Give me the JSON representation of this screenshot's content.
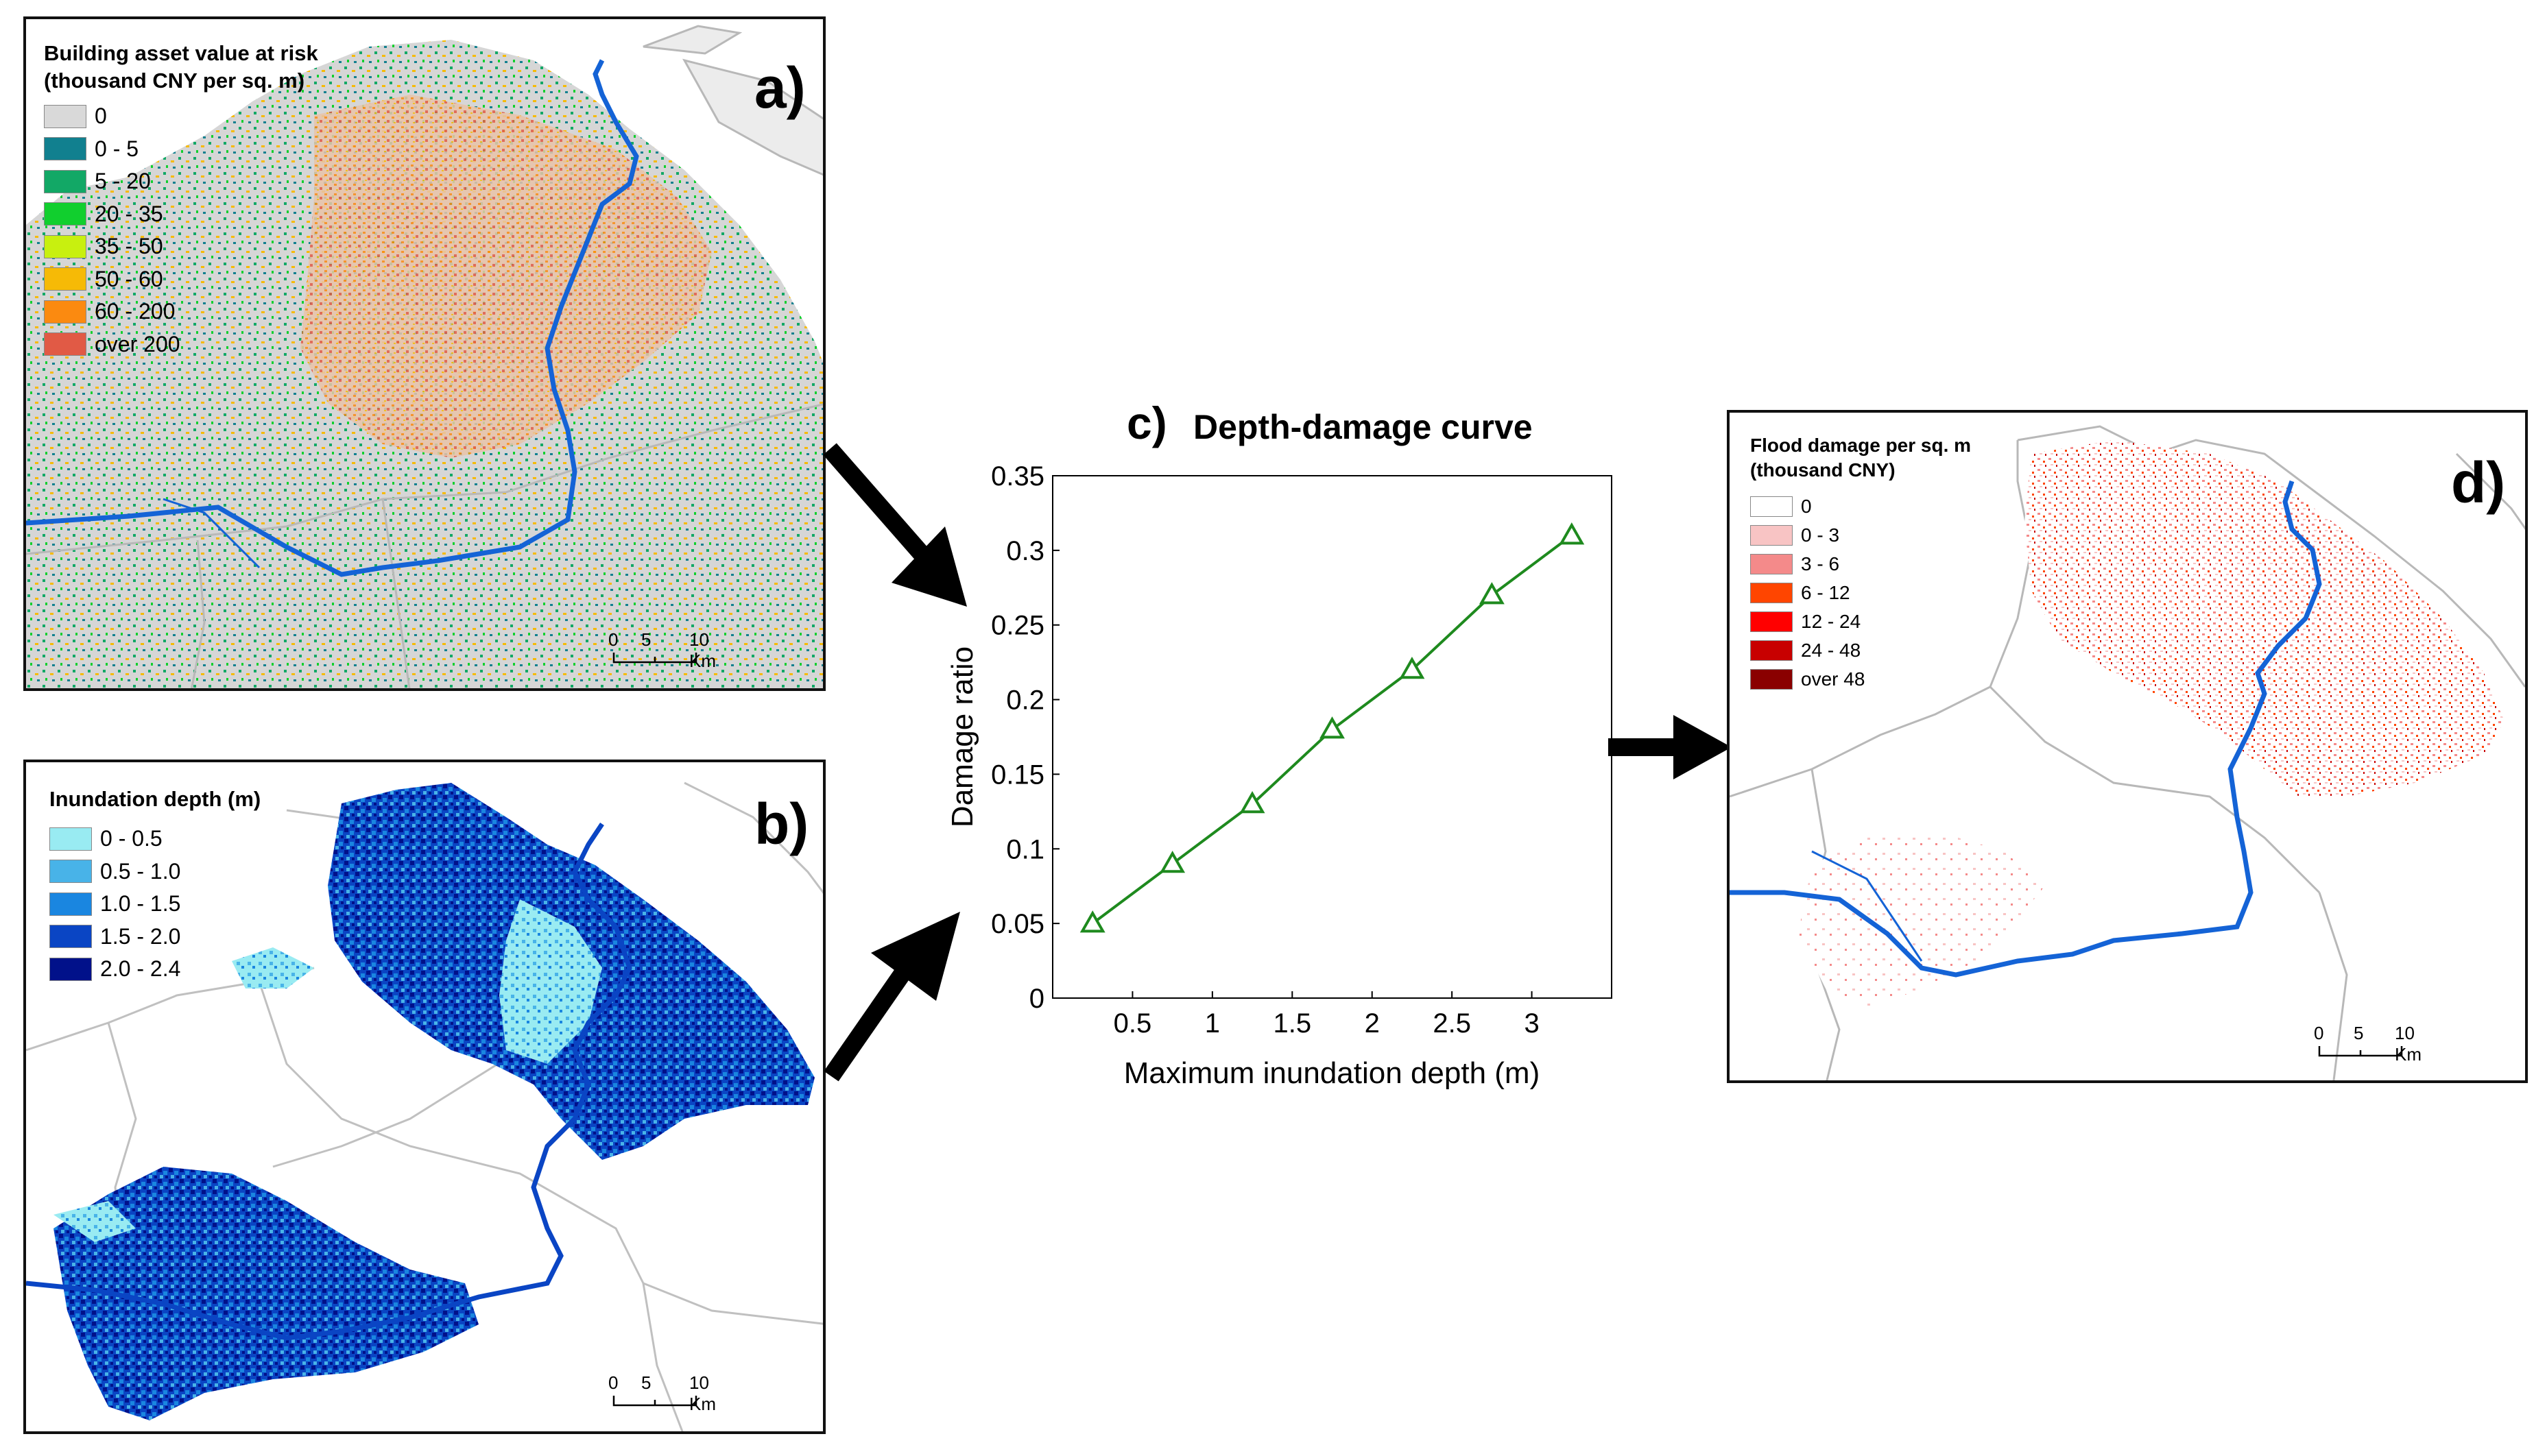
{
  "panel_a": {
    "label": "a)",
    "legend_title_line1": "Building asset value at risk",
    "legend_title_line2": "(thousand CNY per sq. m)",
    "legend": [
      {
        "label": "0",
        "color": "#d9d9d9"
      },
      {
        "label": "0 - 5",
        "color": "#11808f"
      },
      {
        "label": "5 - 20",
        "color": "#12a866"
      },
      {
        "label": "20 - 35",
        "color": "#11cf2e"
      },
      {
        "label": "35 - 50",
        "color": "#c8f00f"
      },
      {
        "label": "50 - 60",
        "color": "#f6ba06"
      },
      {
        "label": "60 - 200",
        "color": "#fb8a10"
      },
      {
        "label": "over 200",
        "color": "#e15a45"
      }
    ],
    "scale": {
      "t0": "0",
      "t1": "5",
      "t2": "10 Km"
    }
  },
  "panel_b": {
    "label": "b)",
    "legend_title": "Inundation depth (m)",
    "legend": [
      {
        "label": "0 - 0.5",
        "color": "#99ebf2"
      },
      {
        "label": "0.5 - 1.0",
        "color": "#48b3e8"
      },
      {
        "label": "1.0 - 1.5",
        "color": "#1a86e0"
      },
      {
        "label": "1.5 - 2.0",
        "color": "#0a45c4"
      },
      {
        "label": "2.0 - 2.4",
        "color": "#01118a"
      }
    ],
    "scale": {
      "t0": "0",
      "t1": "5",
      "t2": "10 Km"
    }
  },
  "panel_c": {
    "label": "c)",
    "title": "Depth-damage curve"
  },
  "chart_data": {
    "type": "line",
    "title": "Depth-damage curve",
    "xlabel": "Maximum inundation depth (m)",
    "ylabel": "Damage ratio",
    "xlim": [
      0,
      3.5
    ],
    "ylim": [
      0,
      0.35
    ],
    "xticks": [
      "0.5",
      "1",
      "1.5",
      "2",
      "2.5",
      "3"
    ],
    "yticks": [
      "0",
      "0.05",
      "0.1",
      "0.15",
      "0.2",
      "0.25",
      "0.3",
      "0.35"
    ],
    "x": [
      0.25,
      0.75,
      1.25,
      1.75,
      2.25,
      2.75,
      3.25
    ],
    "y": [
      0.05,
      0.09,
      0.13,
      0.18,
      0.22,
      0.27,
      0.31
    ],
    "marker": "triangle",
    "color": "#1e8a1e",
    "grid": false
  },
  "panel_d": {
    "label": "d)",
    "legend_title_line1": "Flood damage per sq. m",
    "legend_title_line2": "(thousand CNY)",
    "legend": [
      {
        "label": "0",
        "color": "#ffffff"
      },
      {
        "label": "0 - 3",
        "color": "#f8c4c4"
      },
      {
        "label": "3 - 6",
        "color": "#f48a8a"
      },
      {
        "label": "6 - 12",
        "color": "#ff4500"
      },
      {
        "label": "12 - 24",
        "color": "#ff0000"
      },
      {
        "label": "24 - 48",
        "color": "#c80000"
      },
      {
        "label": "over 48",
        "color": "#8a0000"
      }
    ],
    "scale": {
      "t0": "0",
      "t1": "5",
      "t2": "10 Km"
    }
  },
  "colors": {
    "river": "#1463d6",
    "boundary": "#b8b8b8",
    "arrow": "#000000"
  }
}
